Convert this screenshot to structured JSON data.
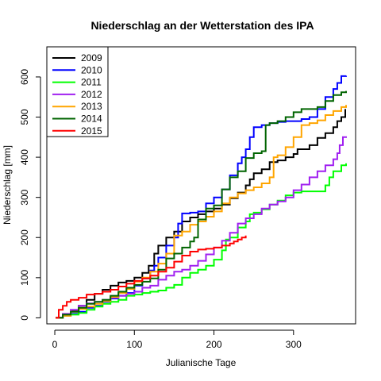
{
  "chart_data": {
    "type": "line",
    "title": "Niederschlag an der Wetterstation des IPA",
    "xlabel": "Julianische Tage",
    "ylabel": "Niederschlag [mm]",
    "xlim": [
      -10,
      378
    ],
    "ylim": [
      -15,
      675
    ],
    "xticks": [
      0,
      100,
      200,
      300
    ],
    "yticks": [
      0,
      100,
      200,
      300,
      400,
      500,
      600
    ],
    "grid": false,
    "legend_position": "top-left",
    "series": [
      {
        "name": "2009",
        "color": "#000000",
        "points": [
          [
            1,
            0
          ],
          [
            10,
            8
          ],
          [
            20,
            18
          ],
          [
            30,
            30
          ],
          [
            40,
            45
          ],
          [
            50,
            60
          ],
          [
            60,
            70
          ],
          [
            70,
            80
          ],
          [
            80,
            88
          ],
          [
            90,
            92
          ],
          [
            100,
            100
          ],
          [
            110,
            112
          ],
          [
            118,
            130
          ],
          [
            125,
            160
          ],
          [
            130,
            180
          ],
          [
            140,
            200
          ],
          [
            150,
            215
          ],
          [
            160,
            240
          ],
          [
            170,
            250
          ],
          [
            180,
            258
          ],
          [
            190,
            265
          ],
          [
            200,
            272
          ],
          [
            210,
            282
          ],
          [
            220,
            298
          ],
          [
            230,
            312
          ],
          [
            240,
            330
          ],
          [
            245,
            345
          ],
          [
            250,
            360
          ],
          [
            260,
            370
          ],
          [
            270,
            388
          ],
          [
            280,
            392
          ],
          [
            290,
            400
          ],
          [
            300,
            408
          ],
          [
            305,
            420
          ],
          [
            310,
            420
          ],
          [
            320,
            430
          ],
          [
            330,
            448
          ],
          [
            340,
            460
          ],
          [
            350,
            475
          ],
          [
            355,
            490
          ],
          [
            360,
            500
          ],
          [
            365,
            520
          ]
        ]
      },
      {
        "name": "2010",
        "color": "#0000ff",
        "points": [
          [
            1,
            0
          ],
          [
            10,
            5
          ],
          [
            20,
            10
          ],
          [
            30,
            15
          ],
          [
            40,
            25
          ],
          [
            50,
            30
          ],
          [
            60,
            40
          ],
          [
            70,
            48
          ],
          [
            80,
            55
          ],
          [
            90,
            62
          ],
          [
            100,
            80
          ],
          [
            110,
            98
          ],
          [
            120,
            118
          ],
          [
            125,
            130
          ],
          [
            130,
            150
          ],
          [
            140,
            180
          ],
          [
            150,
            200
          ],
          [
            155,
            235
          ],
          [
            160,
            260
          ],
          [
            170,
            262
          ],
          [
            180,
            265
          ],
          [
            190,
            285
          ],
          [
            200,
            300
          ],
          [
            210,
            320
          ],
          [
            220,
            355
          ],
          [
            230,
            385
          ],
          [
            235,
            400
          ],
          [
            240,
            420
          ],
          [
            245,
            450
          ],
          [
            250,
            475
          ],
          [
            260,
            480
          ],
          [
            270,
            485
          ],
          [
            280,
            488
          ],
          [
            290,
            490
          ],
          [
            300,
            490
          ],
          [
            310,
            495
          ],
          [
            320,
            500
          ],
          [
            330,
            520
          ],
          [
            340,
            550
          ],
          [
            350,
            570
          ],
          [
            355,
            585
          ],
          [
            360,
            602
          ],
          [
            366,
            603
          ]
        ]
      },
      {
        "name": "2011",
        "color": "#00ff00",
        "points": [
          [
            1,
            0
          ],
          [
            10,
            5
          ],
          [
            20,
            8
          ],
          [
            30,
            12
          ],
          [
            40,
            20
          ],
          [
            50,
            28
          ],
          [
            60,
            35
          ],
          [
            70,
            40
          ],
          [
            80,
            45
          ],
          [
            90,
            55
          ],
          [
            100,
            58
          ],
          [
            110,
            62
          ],
          [
            120,
            65
          ],
          [
            130,
            68
          ],
          [
            140,
            75
          ],
          [
            150,
            82
          ],
          [
            160,
            100
          ],
          [
            170,
            112
          ],
          [
            180,
            120
          ],
          [
            190,
            130
          ],
          [
            200,
            145
          ],
          [
            210,
            168
          ],
          [
            215,
            195
          ],
          [
            220,
            200
          ],
          [
            230,
            225
          ],
          [
            240,
            240
          ],
          [
            245,
            258
          ],
          [
            250,
            262
          ],
          [
            260,
            270
          ],
          [
            270,
            282
          ],
          [
            280,
            292
          ],
          [
            290,
            305
          ],
          [
            300,
            312
          ],
          [
            310,
            315
          ],
          [
            320,
            315
          ],
          [
            330,
            315
          ],
          [
            335,
            315
          ],
          [
            340,
            330
          ],
          [
            345,
            350
          ],
          [
            350,
            365
          ],
          [
            360,
            380
          ],
          [
            366,
            385
          ]
        ]
      },
      {
        "name": "2012",
        "color": "#a020f0",
        "points": [
          [
            1,
            0
          ],
          [
            10,
            10
          ],
          [
            20,
            20
          ],
          [
            30,
            30
          ],
          [
            40,
            36
          ],
          [
            50,
            40
          ],
          [
            60,
            45
          ],
          [
            70,
            50
          ],
          [
            80,
            55
          ],
          [
            90,
            60
          ],
          [
            100,
            65
          ],
          [
            110,
            75
          ],
          [
            120,
            80
          ],
          [
            130,
            95
          ],
          [
            140,
            105
          ],
          [
            150,
            115
          ],
          [
            160,
            120
          ],
          [
            170,
            130
          ],
          [
            180,
            142
          ],
          [
            190,
            158
          ],
          [
            200,
            175
          ],
          [
            210,
            192
          ],
          [
            220,
            212
          ],
          [
            230,
            235
          ],
          [
            240,
            248
          ],
          [
            250,
            258
          ],
          [
            260,
            272
          ],
          [
            270,
            282
          ],
          [
            280,
            290
          ],
          [
            290,
            300
          ],
          [
            300,
            318
          ],
          [
            310,
            332
          ],
          [
            320,
            350
          ],
          [
            330,
            365
          ],
          [
            340,
            380
          ],
          [
            350,
            395
          ],
          [
            355,
            410
          ],
          [
            358,
            430
          ],
          [
            362,
            450
          ],
          [
            366,
            452
          ]
        ]
      },
      {
        "name": "2013",
        "color": "#ffa500",
        "points": [
          [
            1,
            0
          ],
          [
            10,
            5
          ],
          [
            20,
            15
          ],
          [
            30,
            22
          ],
          [
            40,
            28
          ],
          [
            50,
            35
          ],
          [
            60,
            42
          ],
          [
            70,
            52
          ],
          [
            80,
            62
          ],
          [
            90,
            72
          ],
          [
            100,
            90
          ],
          [
            110,
            100
          ],
          [
            120,
            115
          ],
          [
            130,
            135
          ],
          [
            140,
            160
          ],
          [
            150,
            205
          ],
          [
            160,
            215
          ],
          [
            170,
            232
          ],
          [
            180,
            240
          ],
          [
            190,
            252
          ],
          [
            200,
            265
          ],
          [
            210,
            285
          ],
          [
            220,
            300
          ],
          [
            230,
            310
          ],
          [
            240,
            318
          ],
          [
            250,
            325
          ],
          [
            260,
            335
          ],
          [
            270,
            350
          ],
          [
            275,
            400
          ],
          [
            280,
            405
          ],
          [
            290,
            425
          ],
          [
            300,
            450
          ],
          [
            310,
            480
          ],
          [
            320,
            485
          ],
          [
            330,
            492
          ],
          [
            340,
            505
          ],
          [
            350,
            515
          ],
          [
            360,
            525
          ],
          [
            366,
            530
          ]
        ]
      },
      {
        "name": "2014",
        "color": "#006400",
        "points": [
          [
            1,
            0
          ],
          [
            10,
            8
          ],
          [
            20,
            15
          ],
          [
            30,
            25
          ],
          [
            40,
            35
          ],
          [
            50,
            40
          ],
          [
            60,
            45
          ],
          [
            70,
            55
          ],
          [
            80,
            65
          ],
          [
            90,
            75
          ],
          [
            100,
            82
          ],
          [
            110,
            90
          ],
          [
            120,
            98
          ],
          [
            130,
            120
          ],
          [
            140,
            148
          ],
          [
            150,
            160
          ],
          [
            160,
            175
          ],
          [
            170,
            190
          ],
          [
            175,
            200
          ],
          [
            180,
            245
          ],
          [
            190,
            272
          ],
          [
            200,
            280
          ],
          [
            210,
            320
          ],
          [
            220,
            350
          ],
          [
            230,
            365
          ],
          [
            240,
            398
          ],
          [
            250,
            410
          ],
          [
            260,
            415
          ],
          [
            265,
            480
          ],
          [
            270,
            485
          ],
          [
            280,
            490
          ],
          [
            290,
            500
          ],
          [
            300,
            512
          ],
          [
            310,
            520
          ],
          [
            320,
            520
          ],
          [
            330,
            525
          ],
          [
            340,
            540
          ],
          [
            350,
            555
          ],
          [
            360,
            562
          ],
          [
            366,
            565
          ]
        ]
      },
      {
        "name": "2015",
        "color": "#ff0000",
        "points": [
          [
            1,
            0
          ],
          [
            5,
            20
          ],
          [
            10,
            30
          ],
          [
            15,
            40
          ],
          [
            20,
            45
          ],
          [
            30,
            50
          ],
          [
            40,
            58
          ],
          [
            50,
            60
          ],
          [
            60,
            65
          ],
          [
            70,
            70
          ],
          [
            80,
            78
          ],
          [
            90,
            85
          ],
          [
            100,
            92
          ],
          [
            110,
            98
          ],
          [
            120,
            105
          ],
          [
            130,
            115
          ],
          [
            140,
            125
          ],
          [
            150,
            140
          ],
          [
            160,
            155
          ],
          [
            170,
            165
          ],
          [
            180,
            170
          ],
          [
            190,
            172
          ],
          [
            200,
            175
          ],
          [
            210,
            180
          ],
          [
            220,
            185
          ],
          [
            225,
            190
          ],
          [
            230,
            195
          ],
          [
            235,
            200
          ],
          [
            240,
            205
          ]
        ]
      }
    ]
  }
}
